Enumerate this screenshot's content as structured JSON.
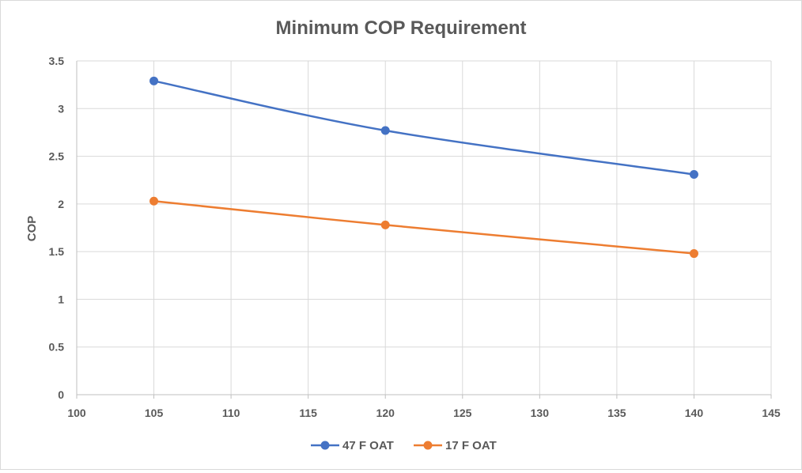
{
  "chart_data": {
    "type": "line",
    "title": "Minimum COP Requirement",
    "xlabel": "",
    "ylabel": "COP",
    "xlim": [
      100,
      145
    ],
    "ylim": [
      0,
      3.5
    ],
    "x_ticks": [
      100,
      105,
      110,
      115,
      120,
      125,
      130,
      135,
      140,
      145
    ],
    "y_ticks": [
      0,
      0.5,
      1,
      1.5,
      2,
      2.5,
      3,
      3.5
    ],
    "grid": true,
    "legend_position": "bottom",
    "series": [
      {
        "name": "47 F OAT",
        "color": "#4472c4",
        "x": [
          105,
          120,
          140
        ],
        "y": [
          3.29,
          2.77,
          2.31
        ]
      },
      {
        "name": "17 F OAT",
        "color": "#ed7d31",
        "x": [
          105,
          120,
          140
        ],
        "y": [
          2.03,
          1.78,
          1.48
        ]
      }
    ]
  }
}
